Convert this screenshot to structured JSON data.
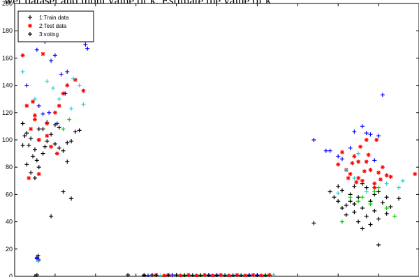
{
  "top_text": "wer dataset and input value of k. Estimate the value of k",
  "colors": {
    "train": "#000000",
    "test": "#ff0000",
    "voting": "#000000",
    "voting_blue": "#0000ff",
    "voting_cyan": "#33cccc",
    "voting_green": "#00cc00"
  },
  "chart_data": {
    "type": "scatter",
    "title": "",
    "xlabel": "",
    "ylabel": "",
    "xlim": [
      0,
      10
    ],
    "ylim": [
      0,
      200
    ],
    "yticks": [
      "0",
      "20",
      "40",
      "60",
      "80",
      "100",
      "120",
      "140",
      "160",
      "180",
      "200"
    ],
    "grid": false,
    "legend": {
      "placement": "top-left",
      "entries": [
        "1:Train data",
        "2:Test data",
        "3:voting"
      ]
    },
    "series": [
      {
        "name": "1:Train data",
        "marker": "+",
        "color": "#000000",
        "points": [
          [
            0.2,
            112
          ],
          [
            0.3,
            105
          ],
          [
            0.4,
            101
          ],
          [
            0.35,
            96
          ],
          [
            0.5,
            93
          ],
          [
            0.6,
            100
          ],
          [
            0.7,
            90
          ],
          [
            0.8,
            99
          ],
          [
            0.45,
            88
          ],
          [
            0.55,
            85
          ],
          [
            0.6,
            80
          ],
          [
            0.3,
            82
          ],
          [
            0.7,
            108
          ],
          [
            0.9,
            104
          ],
          [
            1.0,
            97
          ],
          [
            1.1,
            109
          ],
          [
            1.2,
            92
          ],
          [
            1.3,
            84
          ],
          [
            0.4,
            76
          ],
          [
            0.5,
            72
          ],
          [
            1.5,
            106
          ],
          [
            1.4,
            99
          ],
          [
            0.2,
            96
          ],
          [
            0.25,
            103
          ],
          [
            0.8,
            113
          ],
          [
            1.0,
            111
          ],
          [
            1.1,
            94
          ],
          [
            1.3,
            98
          ],
          [
            1.2,
            62
          ],
          [
            1.4,
            57
          ],
          [
            0.9,
            44
          ],
          [
            0.6,
            108
          ],
          [
            0.75,
            95
          ],
          [
            1.6,
            107
          ],
          [
            0.55,
            14
          ],
          [
            0.6,
            12
          ],
          [
            0.58,
            15
          ],
          [
            0.5,
            0
          ],
          [
            0.55,
            1
          ],
          [
            2.8,
            1
          ],
          [
            3.2,
            0.5
          ],
          [
            3.4,
            1
          ],
          [
            7.4,
            39
          ],
          [
            7.8,
            62
          ],
          [
            7.9,
            58
          ],
          [
            8.0,
            55
          ],
          [
            8.1,
            63
          ],
          [
            8.2,
            52
          ],
          [
            8.3,
            60
          ],
          [
            8.4,
            47
          ],
          [
            8.5,
            58
          ],
          [
            8.6,
            50
          ],
          [
            8.7,
            65
          ],
          [
            8.8,
            55
          ],
          [
            8.9,
            48
          ],
          [
            9.0,
            42
          ],
          [
            9.1,
            54
          ],
          [
            9.2,
            58
          ],
          [
            8.2,
            45
          ],
          [
            8.4,
            66
          ],
          [
            8.6,
            68
          ],
          [
            8.5,
            40
          ],
          [
            8.7,
            44
          ],
          [
            8.9,
            60
          ],
          [
            9.0,
            62
          ],
          [
            8.3,
            55
          ],
          [
            8.1,
            50
          ],
          [
            8.6,
            35
          ],
          [
            9.3,
            51
          ],
          [
            9.5,
            57
          ],
          [
            9.0,
            23
          ],
          [
            8.8,
            38
          ],
          [
            9.2,
            46
          ],
          [
            8.4,
            53
          ],
          [
            8.0,
            66
          ]
        ]
      },
      {
        "name": "2:Test data",
        "marker": "*",
        "color": "#ff0000",
        "points": [
          [
            0.3,
            125
          ],
          [
            0.5,
            118
          ],
          [
            0.7,
            163
          ],
          [
            0.4,
            108
          ],
          [
            0.6,
            100
          ],
          [
            0.8,
            112
          ],
          [
            1.0,
            120
          ],
          [
            1.1,
            125
          ],
          [
            0.9,
            95
          ],
          [
            0.35,
            72
          ],
          [
            0.45,
            128
          ],
          [
            1.2,
            134
          ],
          [
            1.5,
            144
          ],
          [
            1.7,
            136
          ],
          [
            1.3,
            140
          ],
          [
            0.6,
            75
          ],
          [
            0.5,
            115
          ],
          [
            0.8,
            103
          ],
          [
            1.05,
            90
          ],
          [
            0.2,
            162
          ],
          [
            8.0,
            82
          ],
          [
            8.2,
            78
          ],
          [
            8.3,
            75
          ],
          [
            8.4,
            88
          ],
          [
            8.5,
            72
          ],
          [
            8.6,
            70
          ],
          [
            8.7,
            84
          ],
          [
            8.8,
            78
          ],
          [
            8.9,
            68
          ],
          [
            9.0,
            76
          ],
          [
            9.1,
            80
          ],
          [
            9.2,
            74
          ],
          [
            8.1,
            91
          ],
          [
            8.35,
            83
          ],
          [
            8.55,
            95
          ],
          [
            8.75,
            89
          ],
          [
            8.95,
            100
          ],
          [
            9.05,
            71
          ],
          [
            8.65,
            77
          ],
          [
            8.45,
            69
          ],
          [
            8.25,
            72
          ],
          [
            9.3,
            73
          ],
          [
            9.9,
            75
          ],
          [
            8.5,
            84
          ],
          [
            8.7,
            100
          ],
          [
            8.9,
            65
          ]
        ]
      },
      {
        "name": "3:voting",
        "marker": "+",
        "color": "#0000ff",
        "colors_by_point": true,
        "points": [
          [
            0.25,
            180,
            "#33cccc"
          ],
          [
            0.4,
            186,
            "#33cccc"
          ],
          [
            0.55,
            166,
            "#0000ff"
          ],
          [
            0.65,
            175,
            "#0000ff"
          ],
          [
            0.75,
            172,
            "#0000ff"
          ],
          [
            0.9,
            158,
            "#0000ff"
          ],
          [
            1.0,
            162,
            "#0000ff"
          ],
          [
            1.15,
            148,
            "#0000ff"
          ],
          [
            1.3,
            150,
            "#0000ff"
          ],
          [
            1.45,
            145,
            "#33cccc"
          ],
          [
            1.6,
            140,
            "#33cccc"
          ],
          [
            1.75,
            170,
            "#0000ff"
          ],
          [
            1.8,
            167,
            "#0000ff"
          ],
          [
            0.8,
            143,
            "#33cccc"
          ],
          [
            0.95,
            138,
            "#33cccc"
          ],
          [
            1.1,
            130,
            "#33cccc"
          ],
          [
            1.25,
            134,
            "#0000ff"
          ],
          [
            0.6,
            125,
            "#0000ff"
          ],
          [
            0.7,
            119,
            "#0000ff"
          ],
          [
            1.4,
            123,
            "#33cccc"
          ],
          [
            1.7,
            126,
            "#33cccc"
          ],
          [
            1.2,
            108,
            "#00cc00"
          ],
          [
            1.35,
            115,
            "#00cc00"
          ],
          [
            0.5,
            130,
            "#33cccc"
          ],
          [
            0.2,
            150,
            "#33cccc"
          ],
          [
            0.3,
            140,
            "#0000ff"
          ],
          [
            0.85,
            120,
            "#0000ff"
          ],
          [
            1.05,
            112,
            "#0000ff"
          ],
          [
            7.4,
            100,
            "#0000ff"
          ],
          [
            7.7,
            92,
            "#0000ff"
          ],
          [
            7.8,
            92,
            "#0000ff"
          ],
          [
            8.0,
            88,
            "#0000ff"
          ],
          [
            8.1,
            86,
            "#0000ff"
          ],
          [
            8.3,
            94,
            "#0000ff"
          ],
          [
            8.4,
            106,
            "#0000ff"
          ],
          [
            8.6,
            110,
            "#0000ff"
          ],
          [
            8.7,
            105,
            "#0000ff"
          ],
          [
            8.8,
            104,
            "#0000ff"
          ],
          [
            9.0,
            103,
            "#0000ff"
          ],
          [
            9.1,
            133,
            "#0000ff"
          ],
          [
            8.9,
            85,
            "#0000ff"
          ],
          [
            8.5,
            90,
            "#33cccc"
          ],
          [
            8.2,
            78,
            "#33cccc"
          ],
          [
            8.0,
            61,
            "#33cccc"
          ],
          [
            8.7,
            62,
            "#33cccc"
          ],
          [
            9.2,
            68,
            "#33cccc"
          ],
          [
            9.5,
            65,
            "#33cccc"
          ],
          [
            9.6,
            70,
            "#33cccc"
          ],
          [
            8.4,
            72,
            "#33cccc"
          ],
          [
            8.6,
            58,
            "#00cc00"
          ],
          [
            8.1,
            40,
            "#00cc00"
          ],
          [
            8.3,
            58,
            "#00cc00"
          ],
          [
            8.5,
            55,
            "#00cc00"
          ],
          [
            8.8,
            53,
            "#00cc00"
          ],
          [
            9.0,
            65,
            "#00cc00"
          ],
          [
            9.2,
            50,
            "#00cc00"
          ],
          [
            9.4,
            44,
            "#00cc00"
          ],
          [
            8.9,
            62,
            "#00cc00"
          ],
          [
            0.55,
            13,
            "#0000ff"
          ],
          [
            0.58,
            11,
            "#33cccc"
          ],
          [
            3.3,
            0.5,
            "#0000ff"
          ],
          [
            3.6,
            0.5,
            "#33cccc"
          ],
          [
            3.9,
            1,
            "#0000ff"
          ],
          [
            4.0,
            0.5,
            "#33cccc"
          ],
          [
            4.2,
            1,
            "#00cc00"
          ],
          [
            4.3,
            0.5,
            "#0000ff"
          ],
          [
            4.4,
            1,
            "#33cccc"
          ],
          [
            4.5,
            0.5,
            "#0000ff"
          ],
          [
            4.6,
            1,
            "#00cc00"
          ],
          [
            4.7,
            0.5,
            "#33cccc"
          ],
          [
            4.8,
            1,
            "#0000ff"
          ],
          [
            4.9,
            0.5,
            "#33cccc"
          ],
          [
            5.0,
            1,
            "#0000ff"
          ],
          [
            5.1,
            0.5,
            "#00cc00"
          ],
          [
            5.2,
            1,
            "#33cccc"
          ],
          [
            5.3,
            0.5,
            "#0000ff"
          ],
          [
            5.4,
            1,
            "#33cccc"
          ],
          [
            5.5,
            0.5,
            "#0000ff"
          ],
          [
            5.6,
            1,
            "#33cccc"
          ],
          [
            5.7,
            0.5,
            "#00cc00"
          ],
          [
            5.8,
            1,
            "#0000ff"
          ],
          [
            5.9,
            0.5,
            "#33cccc"
          ],
          [
            6.0,
            1,
            "#0000ff"
          ],
          [
            6.1,
            0.5,
            "#33cccc"
          ],
          [
            6.2,
            1,
            "#00cc00"
          ],
          [
            6.3,
            0.5,
            "#0000ff"
          ],
          [
            6.4,
            1,
            "#33cccc"
          ]
        ]
      },
      {
        "name": "",
        "marker": "*",
        "color": "#ff0000",
        "points": [
          [
            3.5,
            1
          ],
          [
            3.7,
            0.5
          ],
          [
            3.8,
            1
          ],
          [
            4.1,
            0.5
          ],
          [
            4.3,
            1
          ],
          [
            4.5,
            0.5
          ],
          [
            4.7,
            1
          ],
          [
            4.9,
            0.5
          ],
          [
            5.1,
            1
          ],
          [
            5.3,
            0.5
          ],
          [
            5.5,
            1
          ],
          [
            5.7,
            0.5
          ],
          [
            5.9,
            1
          ],
          [
            6.1,
            0.5
          ],
          [
            6.3,
            1
          ]
        ]
      },
      {
        "name": "",
        "marker": "+",
        "color": "#000000",
        "points": [
          [
            3.2,
            1
          ],
          [
            3.5,
            0.5
          ],
          [
            3.8,
            0.5
          ],
          [
            4.0,
            1
          ],
          [
            4.2,
            0.5
          ],
          [
            4.4,
            0.5
          ],
          [
            4.6,
            0.5
          ],
          [
            4.8,
            0.5
          ],
          [
            5.0,
            0.5
          ],
          [
            5.2,
            0.5
          ],
          [
            5.4,
            0.5
          ],
          [
            5.6,
            0.5
          ],
          [
            5.8,
            0.5
          ],
          [
            6.0,
            0.5
          ],
          [
            6.2,
            0.5
          ]
        ]
      }
    ]
  }
}
